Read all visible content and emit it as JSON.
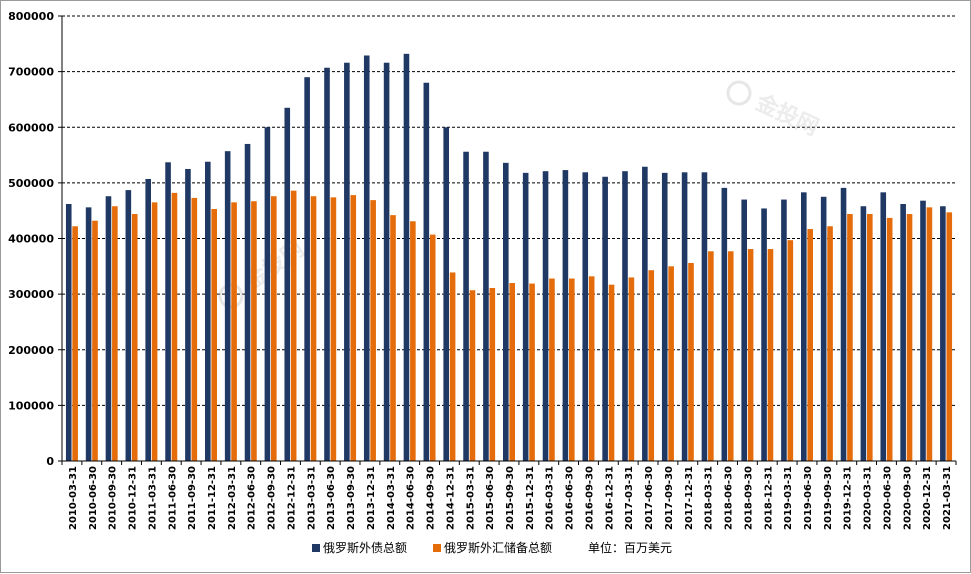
{
  "chart_data": {
    "type": "bar",
    "title": "",
    "xlabel": "",
    "ylabel": "",
    "ylim": [
      0,
      800000
    ],
    "y_ticks": [
      0,
      100000,
      200000,
      300000,
      400000,
      500000,
      600000,
      700000,
      800000
    ],
    "grid": true,
    "grid_style": "dashed-horizontal",
    "legend_position": "bottom",
    "unit_note": "单位：百万美元",
    "categories": [
      "2010-03-31",
      "2010-06-30",
      "2010-09-30",
      "2010-12-31",
      "2011-03-31",
      "2011-06-30",
      "2011-09-30",
      "2011-12-31",
      "2012-03-31",
      "2012-06-30",
      "2012-09-30",
      "2012-12-31",
      "2013-03-31",
      "2013-06-30",
      "2013-09-30",
      "2013-12-31",
      "2014-03-31",
      "2014-06-30",
      "2014-09-30",
      "2014-12-31",
      "2015-03-31",
      "2015-06-30",
      "2015-09-30",
      "2015-12-31",
      "2016-03-31",
      "2016-06-30",
      "2016-09-30",
      "2016-12-31",
      "2017-03-31",
      "2017-06-30",
      "2017-09-30",
      "2017-12-31",
      "2018-03-31",
      "2018-06-30",
      "2018-09-30",
      "2018-12-31",
      "2019-03-31",
      "2019-06-30",
      "2019-09-30",
      "2019-12-31",
      "2020-03-31",
      "2020-06-30",
      "2020-09-30",
      "2020-12-31",
      "2021-03-31"
    ],
    "series": [
      {
        "name": "俄罗斯外债总额",
        "color": "#1f3864",
        "values": [
          462000,
          456000,
          476000,
          487000,
          507000,
          537000,
          525000,
          538000,
          557000,
          570000,
          600000,
          635000,
          690000,
          707000,
          716000,
          729000,
          716000,
          732000,
          680000,
          600000,
          556000,
          556000,
          536000,
          518000,
          521000,
          523000,
          519000,
          511000,
          521000,
          529000,
          518000,
          519000,
          519000,
          491000,
          470000,
          454000,
          470000,
          483000,
          475000,
          491000,
          458000,
          483000,
          462000,
          468000,
          458000
        ]
      },
      {
        "name": "俄罗斯外汇储备总额",
        "color": "#e46c0a",
        "values": [
          422000,
          432000,
          458000,
          444000,
          465000,
          482000,
          473000,
          453000,
          465000,
          467000,
          476000,
          486000,
          476000,
          474000,
          478000,
          469000,
          442000,
          431000,
          407000,
          339000,
          307000,
          311000,
          320000,
          319000,
          328000,
          328000,
          332000,
          317000,
          330000,
          343000,
          350000,
          356000,
          377000,
          377000,
          381000,
          381000,
          397000,
          417000,
          422000,
          444000,
          444000,
          437000,
          444000,
          456000,
          447000
        ]
      }
    ]
  },
  "watermark": {
    "text": "金投网",
    "icon": "goldtoutiao-logo"
  }
}
